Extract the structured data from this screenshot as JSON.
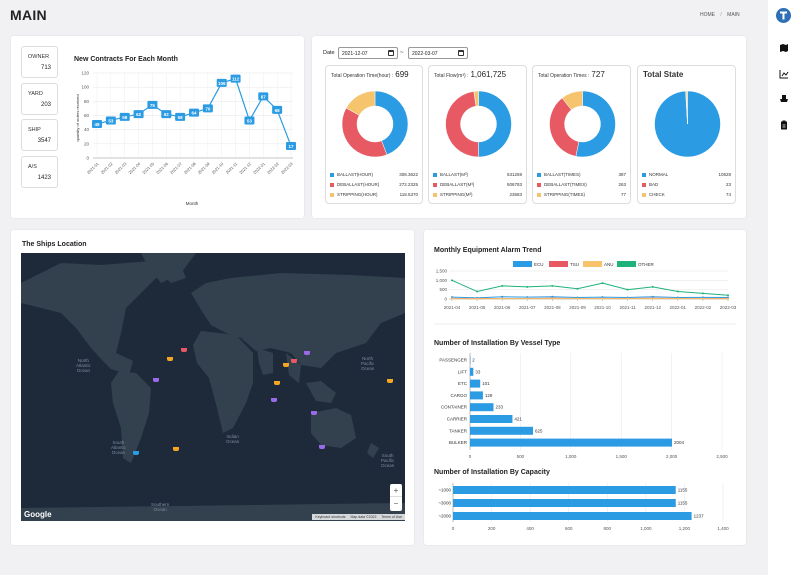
{
  "header": {
    "title": "MAIN",
    "breadcrumb": {
      "home": "HOME",
      "sep": "/",
      "current": "MAIN"
    }
  },
  "stats": [
    {
      "label": "OWNER",
      "value": "713"
    },
    {
      "label": "YARD",
      "value": "203"
    },
    {
      "label": "SHIP",
      "value": "3547"
    },
    {
      "label": "A/S",
      "value": "1423"
    }
  ],
  "contracts": {
    "title": "New Contracts For Each Month",
    "ylabel": "quantity of orders received",
    "xlabel": "Month",
    "yticks": [
      "0",
      "20",
      "40",
      "60",
      "80",
      "100",
      "120"
    ]
  },
  "date_filter": {
    "label": "Date",
    "start": "2021-12-07",
    "sep": "~",
    "end": "2022-03-07"
  },
  "donuts": [
    {
      "title": "Total Operation Time(hour) :",
      "total": "699",
      "items": [
        {
          "name": "BALLAST(HOUR)",
          "value": "308.3622",
          "color": "#2b9be3"
        },
        {
          "name": "DEBALLAST(HOUR)",
          "value": "272.2325",
          "color": "#e85a63"
        },
        {
          "name": "STRIPPING(HOUR)",
          "value": "118.5370",
          "color": "#f5c46c"
        }
      ]
    },
    {
      "title": "Total Flow(m³) :",
      "total": "1,061,725",
      "items": [
        {
          "name": "BALLAST(M³)",
          "value": "531259",
          "color": "#2b9be3"
        },
        {
          "name": "DEBALLAST(M³)",
          "value": "506783",
          "color": "#e85a63"
        },
        {
          "name": "STRIPPING(M³)",
          "value": "23683",
          "color": "#f5c46c"
        }
      ]
    },
    {
      "title": "Total Operation Times :",
      "total": "727",
      "items": [
        {
          "name": "BALLAST(TIMES)",
          "value": "387",
          "color": "#2b9be3"
        },
        {
          "name": "DEBALLAST(TIMES)",
          "value": "263",
          "color": "#e85a63"
        },
        {
          "name": "STRIPPING(TIMES)",
          "value": "77",
          "color": "#f5c46c"
        }
      ]
    },
    {
      "title": "Total State",
      "total": "",
      "items": [
        {
          "name": "NORMAL",
          "value": "10528",
          "color": "#2b9be3"
        },
        {
          "name": "BAD",
          "value": "23",
          "color": "#e85a63"
        },
        {
          "name": "CHECK",
          "value": "74",
          "color": "#f5c46c"
        }
      ]
    }
  ],
  "map": {
    "title": "The Ships Location",
    "labels": {
      "north_atlantic": "North\nAtlantic\nOcean",
      "south_atlantic": "South\nAtlantic\nOcean",
      "indian": "Indian\nOcean",
      "north_pacific": "North\nPacific\nOcean",
      "south_pacific": "South\nPacific\nOcean",
      "southern": "Southern\nOcean"
    },
    "attribution": {
      "logo": "Google",
      "shortcuts": "Keyboard shortcuts",
      "data": "Map data ©2022",
      "terms": "Terms of Use"
    },
    "zoom_in": "+",
    "zoom_out": "−"
  },
  "colors": {
    "blue": "#2b9be3",
    "red": "#e85a63",
    "yellow": "#f5c46c",
    "green": "#1fb27a"
  },
  "chart_data": [
    {
      "type": "line",
      "title": "New Contracts For Each Month",
      "categories": [
        "2021-01",
        "2021-02",
        "2021-03",
        "2021-04",
        "2021-05",
        "2021-06",
        "2021-07",
        "2021-08",
        "2021-09",
        "2021-10",
        "2021-11",
        "2021-12",
        "2022-01",
        "2022-02",
        "2022-03"
      ],
      "values": [
        48,
        53,
        58,
        62,
        75,
        62,
        58,
        64,
        70,
        106,
        112,
        53,
        87,
        68,
        17
      ],
      "xlabel": "Month",
      "ylabel": "quantity of orders received",
      "ylim": [
        0,
        120
      ]
    },
    {
      "type": "pie",
      "title": "Total Operation Time(hour)",
      "categories": [
        "BALLAST(HOUR)",
        "DEBALLAST(HOUR)",
        "STRIPPING(HOUR)"
      ],
      "values": [
        308.3622,
        272.2325,
        118.537
      ]
    },
    {
      "type": "pie",
      "title": "Total Flow(m³)",
      "categories": [
        "BALLAST(M³)",
        "DEBALLAST(M³)",
        "STRIPPING(M³)"
      ],
      "values": [
        531259,
        506783,
        23683
      ]
    },
    {
      "type": "pie",
      "title": "Total Operation Times",
      "categories": [
        "BALLAST(TIMES)",
        "DEBALLAST(TIMES)",
        "STRIPPING(TIMES)"
      ],
      "values": [
        387,
        263,
        77
      ]
    },
    {
      "type": "pie",
      "title": "Total State",
      "categories": [
        "NORMAL",
        "BAD",
        "CHECK"
      ],
      "values": [
        10528,
        23,
        74
      ]
    },
    {
      "type": "line",
      "title": "Monthly Equipment Alarm Trend",
      "categories": [
        "2021-04",
        "2021-05",
        "2021-06",
        "2021-07",
        "2021-08",
        "2021-09",
        "2021-10",
        "2021-11",
        "2021-12",
        "2022-01",
        "2022-02",
        "2022-03"
      ],
      "yticks": [
        "0",
        "500",
        "1,000",
        "1,500"
      ],
      "ylim": [
        0,
        1500
      ],
      "series": [
        {
          "name": "ECU",
          "values": [
            100,
            60,
            120,
            100,
            120,
            80,
            100,
            80,
            120,
            80,
            90,
            80
          ]
        },
        {
          "name": "TSU",
          "values": [
            30,
            20,
            30,
            30,
            40,
            30,
            30,
            30,
            40,
            30,
            30,
            20
          ]
        },
        {
          "name": "ANU",
          "values": [
            20,
            10,
            20,
            20,
            20,
            20,
            20,
            20,
            20,
            20,
            20,
            10
          ]
        },
        {
          "name": "OTHER",
          "values": [
            1000,
            400,
            700,
            650,
            700,
            550,
            850,
            500,
            650,
            400,
            300,
            200
          ]
        }
      ]
    },
    {
      "type": "bar",
      "orientation": "horizontal",
      "title": "Number of Installation By Vessel Type",
      "categories": [
        "PASSENGER",
        "LIFT",
        "ETC",
        "CARGO",
        "CONTAINER",
        "CARRIER",
        "TANKER",
        "BULKER"
      ],
      "values": [
        2,
        33,
        101,
        128,
        233,
        421,
        625,
        2004
      ],
      "xticks": [
        "0",
        "500",
        "1,000",
        "1,500",
        "2,000",
        "2,500"
      ],
      "xlim": [
        0,
        2500
      ]
    },
    {
      "type": "bar",
      "orientation": "horizontal",
      "title": "Number of Installation By Capacity",
      "categories": [
        "~1000",
        "~3000",
        "~2000"
      ],
      "values": [
        1155,
        1155,
        1237
      ],
      "xticks": [
        "0",
        "200",
        "400",
        "600",
        "800",
        "1,000",
        "1,200",
        "1,400"
      ],
      "xlim": [
        0,
        1400
      ]
    }
  ]
}
